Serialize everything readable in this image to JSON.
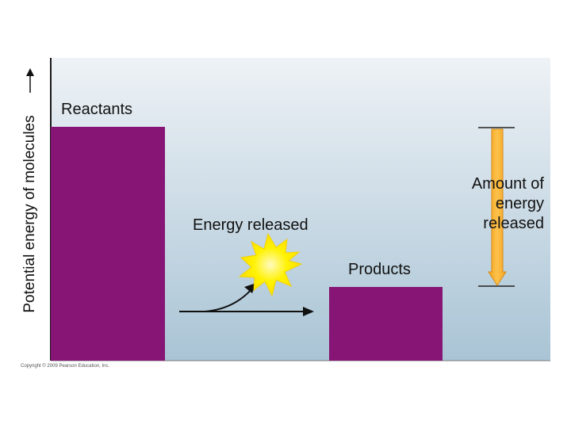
{
  "y_axis_label": "Potential energy of molecules",
  "reactants_label": "Reactants",
  "products_label": "Products",
  "energy_released_label": "Energy released",
  "amount_label_lines": [
    "Amount of",
    "energy",
    "released"
  ],
  "copyright": "Copyright © 2009 Pearson Education, Inc.",
  "colors": {
    "bar": "#861575",
    "background_top": "#eef2f6",
    "background_bottom": "#a9c4d5",
    "spark": "#fff200",
    "spark_center": "#fffbc0",
    "arrow_fill": "#fbb535",
    "arrow_edge": "#e08a10"
  }
}
